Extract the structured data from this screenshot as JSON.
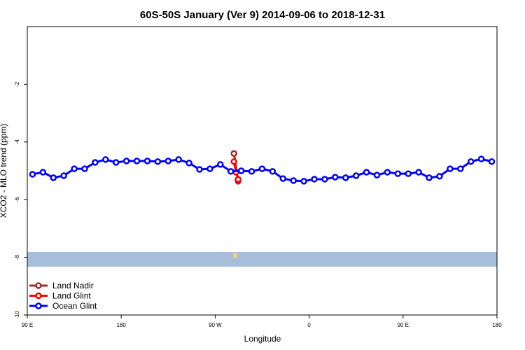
{
  "chart_data": {
    "type": "line",
    "title": "60S-50S January (Ver 9)   2014-09-06 to 2018-12-31",
    "x_label": "Longitude",
    "y_label": "XCO2 - MLO trend (ppm)",
    "xlim": [
      90,
      540
    ],
    "xticks": [
      {
        "value": 90,
        "label": "90 E"
      },
      180,
      {
        "value": 270,
        "label": "90 W"
      },
      {
        "value": 360,
        "label": "0"
      },
      {
        "value": 450,
        "label": "90 E"
      },
      {
        "value": 540,
        "label": "180"
      }
    ],
    "ylim": [
      -10,
      0
    ],
    "yticks": [
      -10,
      -8,
      -6,
      -4,
      -2
    ],
    "legend": "bottom-left",
    "series": [
      {
        "name": "Land Nadir",
        "color": "#a52a2a",
        "x": [
          288,
          292
        ],
        "values": [
          -4.4,
          -5.36
        ]
      },
      {
        "name": "Land Glint",
        "color": "#ff0000",
        "x": [
          288,
          290,
          292
        ],
        "values": [
          -4.68,
          -5.05,
          -5.3
        ]
      },
      {
        "name": "Ocean Glint",
        "color": "#0000ff",
        "x": [
          95,
          105,
          115,
          125,
          135,
          145,
          155,
          165,
          175,
          185,
          195,
          205,
          215,
          225,
          235,
          245,
          255,
          265,
          275,
          285,
          295,
          305,
          315,
          325,
          335,
          345,
          355,
          365,
          375,
          385,
          395,
          405,
          415,
          425,
          435,
          445,
          455,
          465,
          475,
          485,
          495,
          505,
          515,
          525,
          535
        ],
        "values": [
          -5.12,
          -5.05,
          -5.24,
          -5.17,
          -4.93,
          -4.93,
          -4.71,
          -4.61,
          -4.71,
          -4.66,
          -4.66,
          -4.66,
          -4.68,
          -4.66,
          -4.61,
          -4.73,
          -4.95,
          -4.93,
          -4.78,
          -5.02,
          -5.0,
          -5.02,
          -4.93,
          -5.02,
          -5.27,
          -5.34,
          -5.36,
          -5.29,
          -5.29,
          -5.22,
          -5.24,
          -5.17,
          -5.05,
          -5.15,
          -5.05,
          -5.1,
          -5.1,
          -5.05,
          -5.24,
          -5.19,
          -4.93,
          -4.93,
          -4.68,
          -4.59,
          -4.68
        ]
      }
    ]
  }
}
